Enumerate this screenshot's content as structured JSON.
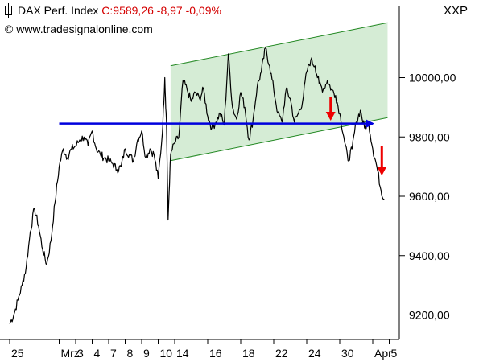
{
  "header": {
    "instrument": "DAX Perf. Index",
    "close_label": "C:",
    "close": "9589,26",
    "change": "-8,97",
    "change_pct": "-0,09%",
    "copyright": "© www.tradesignalonline.com",
    "symbol": "XXP",
    "instrument_icon": "candle-chart-icon",
    "quote_color": "#d40000"
  },
  "chart_data": {
    "type": "line",
    "title": "DAX Perf. Index",
    "ylim": [
      9120,
      10240
    ],
    "y_ticks": [
      {
        "value": 9200,
        "label": "9200,00"
      },
      {
        "value": 9400,
        "label": "9400,00"
      },
      {
        "value": 9600,
        "label": "9600,00"
      },
      {
        "value": 9800,
        "label": "9800,00"
      },
      {
        "value": 10000,
        "label": "10000,00"
      }
    ],
    "x_ticks": [
      {
        "i": 0,
        "label": "25"
      },
      {
        "i": 3,
        "label": "Mrz"
      },
      {
        "i": 4,
        "label": "3"
      },
      {
        "i": 5,
        "label": "4"
      },
      {
        "i": 6,
        "label": "7"
      },
      {
        "i": 7,
        "label": "8"
      },
      {
        "i": 8,
        "label": "9"
      },
      {
        "i": 9,
        "label": "10"
      },
      {
        "i": 10,
        "label": "14"
      },
      {
        "i": 12,
        "label": "16"
      },
      {
        "i": 14,
        "label": "18"
      },
      {
        "i": 16,
        "label": "22"
      },
      {
        "i": 18,
        "label": "24"
      },
      {
        "i": 20,
        "label": "30"
      },
      {
        "i": 22,
        "label": "Apr"
      },
      {
        "i": 23,
        "label": "5"
      }
    ],
    "x_count": 24,
    "series": [
      {
        "color": "#000000",
        "points": [
          [
            0.0,
            9170
          ],
          [
            0.25,
            9200
          ],
          [
            0.5,
            9250
          ],
          [
            0.75,
            9300
          ],
          [
            1.0,
            9360
          ],
          [
            1.25,
            9480
          ],
          [
            1.5,
            9560
          ],
          [
            1.75,
            9500
          ],
          [
            2.0,
            9420
          ],
          [
            2.25,
            9370
          ],
          [
            2.5,
            9450
          ],
          [
            2.75,
            9580
          ],
          [
            3.0,
            9700
          ],
          [
            3.25,
            9760
          ],
          [
            3.5,
            9730
          ],
          [
            3.75,
            9760
          ],
          [
            4.0,
            9770
          ],
          [
            4.25,
            9790
          ],
          [
            4.5,
            9800
          ],
          [
            4.75,
            9770
          ],
          [
            5.0,
            9820
          ],
          [
            5.25,
            9760
          ],
          [
            5.5,
            9740
          ],
          [
            5.75,
            9730
          ],
          [
            6.0,
            9720
          ],
          [
            6.25,
            9710
          ],
          [
            6.5,
            9690
          ],
          [
            6.75,
            9700
          ],
          [
            7.0,
            9760
          ],
          [
            7.25,
            9740
          ],
          [
            7.5,
            9720
          ],
          [
            7.75,
            9790
          ],
          [
            8.0,
            9820
          ],
          [
            8.25,
            9730
          ],
          [
            8.5,
            9760
          ],
          [
            8.75,
            9740
          ],
          [
            9.0,
            9660
          ],
          [
            9.25,
            9810
          ],
          [
            9.4,
            10000
          ],
          [
            9.5,
            9850
          ],
          [
            9.6,
            9520
          ],
          [
            9.75,
            9740
          ],
          [
            10.0,
            9780
          ],
          [
            10.25,
            9800
          ],
          [
            10.5,
            9990
          ],
          [
            10.75,
            9960
          ],
          [
            11.0,
            9920
          ],
          [
            11.25,
            9950
          ],
          [
            11.5,
            9930
          ],
          [
            11.75,
            9960
          ],
          [
            12.0,
            9870
          ],
          [
            12.25,
            9830
          ],
          [
            12.5,
            9850
          ],
          [
            12.75,
            9880
          ],
          [
            13.0,
            9840
          ],
          [
            13.25,
            10080
          ],
          [
            13.5,
            9900
          ],
          [
            13.75,
            9860
          ],
          [
            14.0,
            9950
          ],
          [
            14.25,
            9900
          ],
          [
            14.5,
            9790
          ],
          [
            14.75,
            9860
          ],
          [
            15.0,
            9970
          ],
          [
            15.25,
            10020
          ],
          [
            15.5,
            10100
          ],
          [
            15.75,
            10040
          ],
          [
            16.0,
            9960
          ],
          [
            16.25,
            9880
          ],
          [
            16.5,
            9850
          ],
          [
            16.75,
            9960
          ],
          [
            17.0,
            9930
          ],
          [
            17.25,
            9850
          ],
          [
            17.5,
            9880
          ],
          [
            17.75,
            9920
          ],
          [
            18.0,
            10020
          ],
          [
            18.25,
            10060
          ],
          [
            18.5,
            10040
          ],
          [
            18.75,
            9980
          ],
          [
            19.0,
            9960
          ],
          [
            19.25,
            9990
          ],
          [
            19.5,
            9960
          ],
          [
            19.75,
            9940
          ],
          [
            20.0,
            9880
          ],
          [
            20.25,
            9800
          ],
          [
            20.5,
            9720
          ],
          [
            20.75,
            9760
          ],
          [
            21.0,
            9850
          ],
          [
            21.25,
            9890
          ],
          [
            21.5,
            9830
          ],
          [
            21.75,
            9850
          ],
          [
            22.0,
            9760
          ],
          [
            22.25,
            9700
          ],
          [
            22.5,
            9620
          ],
          [
            22.7,
            9589
          ]
        ]
      },
      {
        "name": "",
        "color": "#0000dd",
        "points": [
          [
            3.0,
            9845
          ],
          [
            22.0,
            9845
          ]
        ]
      }
    ],
    "channel": {
      "color_fill": "#d5ecd5",
      "color_line": "#228822",
      "upper": [
        [
          9.75,
          10040
        ],
        [
          22.9,
          10185
        ]
      ],
      "lower": [
        [
          9.75,
          9720
        ],
        [
          22.9,
          9865
        ]
      ]
    },
    "annotations": [
      {
        "type": "down-arrow",
        "x": 19.45,
        "y_from": 9935,
        "y_to": 9855,
        "color": "#ee0000"
      },
      {
        "type": "down-arrow",
        "x": 22.55,
        "y_from": 9770,
        "y_to": 9670,
        "color": "#ee0000"
      }
    ],
    "grid": false,
    "legend": "none"
  }
}
